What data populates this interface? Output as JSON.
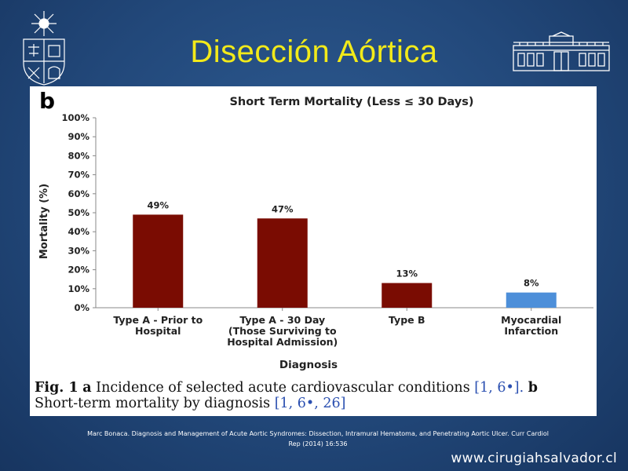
{
  "slide": {
    "title": "Disección Aórtica",
    "citation_line1": "Marc Bonaca. Diagnosis and Management of Acute Aortic Syndromes: Dissection, Intramural Hematoma, and Penetrating Aortic Ulcer. Curr Cardiol",
    "citation_line2": "Rep (2014) 16:536",
    "website": "www.cirugiahsalvador.cl"
  },
  "figure": {
    "panel_letter": "b",
    "caption_fig": "Fig. 1",
    "caption_a": "a",
    "caption_text1": "Incidence of selected acute cardiovascular conditions",
    "caption_refs1": "[1, 6•].",
    "caption_b": "b",
    "caption_text2": "Short-term mortality by diagnosis",
    "caption_refs2": "[1, 6•, 26]"
  },
  "colors": {
    "title": "#f2ea1a",
    "bar_dark_red": "#7a0c02",
    "bar_blue": "#4d8fd9"
  },
  "icons": {
    "left_logo": "university-crest-icon",
    "right_logo": "hospital-building-icon"
  },
  "chart_data": {
    "type": "bar",
    "title": "Short Term Mortality (Less ≤ 30 Days)",
    "xlabel": "Diagnosis",
    "ylabel": "Mortality (%)",
    "ylim": [
      0,
      100
    ],
    "yticks": [
      "0%",
      "10%",
      "20%",
      "30%",
      "40%",
      "50%",
      "60%",
      "70%",
      "80%",
      "90%",
      "100%"
    ],
    "grid": false,
    "categories": [
      [
        "Type A - Prior to",
        "Hospital"
      ],
      [
        "Type A - 30 Day",
        "(Those Surviving to",
        "Hospital Admission)"
      ],
      [
        "Type B"
      ],
      [
        "Myocardial",
        "Infarction"
      ]
    ],
    "values": [
      49,
      47,
      13,
      8
    ],
    "data_labels": [
      "49%",
      "47%",
      "13%",
      "8%"
    ],
    "bar_colors": [
      "#7a0c02",
      "#7a0c02",
      "#7a0c02",
      "#4d8fd9"
    ]
  }
}
